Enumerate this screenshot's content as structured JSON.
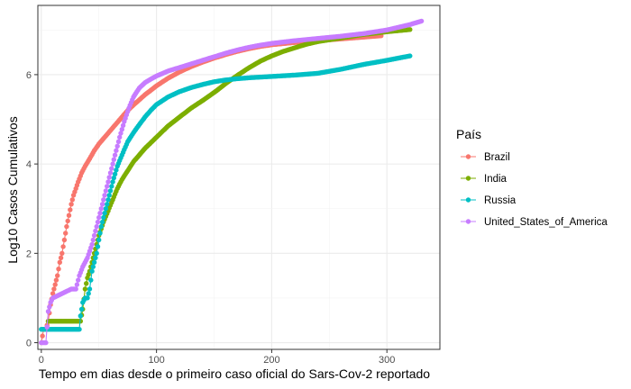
{
  "chart_data": {
    "type": "line",
    "xlabel": "Tempo em dias desde o primeiro caso oficial do Sars-Cov-2 reportado",
    "ylabel": "Log10 Casos Cumulativos",
    "xlim": [
      -3,
      346
    ],
    "ylim": [
      -0.15,
      7.55
    ],
    "x_ticks": [
      0,
      100,
      200,
      300
    ],
    "y_ticks": [
      0,
      2,
      4,
      6
    ],
    "grid": true,
    "legend": {
      "title": "País",
      "position": "right"
    },
    "series": [
      {
        "name": "Brazil",
        "color": "#F8766D",
        "points": [
          [
            0,
            0
          ],
          [
            2,
            0.3
          ],
          [
            4,
            0.3
          ],
          [
            6,
            0.48
          ],
          [
            8,
            0.85
          ],
          [
            10,
            1.1
          ],
          [
            12,
            1.3
          ],
          [
            14,
            1.5
          ],
          [
            16,
            1.8
          ],
          [
            18,
            2.0
          ],
          [
            20,
            2.3
          ],
          [
            22,
            2.6
          ],
          [
            24,
            2.85
          ],
          [
            26,
            3.1
          ],
          [
            28,
            3.3
          ],
          [
            30,
            3.45
          ],
          [
            32,
            3.6
          ],
          [
            35,
            3.8
          ],
          [
            38,
            3.95
          ],
          [
            42,
            4.12
          ],
          [
            46,
            4.3
          ],
          [
            50,
            4.45
          ],
          [
            55,
            4.6
          ],
          [
            60,
            4.75
          ],
          [
            65,
            4.9
          ],
          [
            70,
            5.05
          ],
          [
            75,
            5.2
          ],
          [
            80,
            5.32
          ],
          [
            90,
            5.55
          ],
          [
            100,
            5.75
          ],
          [
            110,
            5.92
          ],
          [
            120,
            6.06
          ],
          [
            130,
            6.18
          ],
          [
            140,
            6.28
          ],
          [
            150,
            6.37
          ],
          [
            160,
            6.45
          ],
          [
            170,
            6.52
          ],
          [
            180,
            6.58
          ],
          [
            190,
            6.63
          ],
          [
            200,
            6.67
          ],
          [
            220,
            6.72
          ],
          [
            240,
            6.76
          ],
          [
            260,
            6.8
          ],
          [
            280,
            6.84
          ],
          [
            295,
            6.87
          ]
        ]
      },
      {
        "name": "India",
        "color": "#7CAE00",
        "points": [
          [
            6,
            0.48
          ],
          [
            10,
            0.48
          ],
          [
            14,
            0.48
          ],
          [
            18,
            0.48
          ],
          [
            22,
            0.48
          ],
          [
            26,
            0.48
          ],
          [
            30,
            0.48
          ],
          [
            34,
            0.48
          ],
          [
            36,
            0.75
          ],
          [
            38,
            1.2
          ],
          [
            40,
            1.45
          ],
          [
            42,
            1.6
          ],
          [
            44,
            1.8
          ],
          [
            46,
            2.0
          ],
          [
            48,
            2.2
          ],
          [
            50,
            2.4
          ],
          [
            54,
            2.7
          ],
          [
            58,
            2.95
          ],
          [
            62,
            3.2
          ],
          [
            66,
            3.45
          ],
          [
            70,
            3.65
          ],
          [
            75,
            3.85
          ],
          [
            80,
            4.05
          ],
          [
            85,
            4.2
          ],
          [
            90,
            4.35
          ],
          [
            100,
            4.6
          ],
          [
            110,
            4.85
          ],
          [
            120,
            5.05
          ],
          [
            130,
            5.25
          ],
          [
            140,
            5.42
          ],
          [
            150,
            5.6
          ],
          [
            160,
            5.8
          ],
          [
            170,
            5.98
          ],
          [
            180,
            6.15
          ],
          [
            190,
            6.3
          ],
          [
            200,
            6.42
          ],
          [
            210,
            6.52
          ],
          [
            220,
            6.6
          ],
          [
            230,
            6.68
          ],
          [
            240,
            6.74
          ],
          [
            260,
            6.82
          ],
          [
            280,
            6.9
          ],
          [
            300,
            6.96
          ],
          [
            320,
            7.01
          ]
        ]
      },
      {
        "name": "Russia",
        "color": "#00BFC4",
        "points": [
          [
            0,
            0.3
          ],
          [
            5,
            0.3
          ],
          [
            10,
            0.3
          ],
          [
            15,
            0.3
          ],
          [
            20,
            0.3
          ],
          [
            25,
            0.3
          ],
          [
            30,
            0.3
          ],
          [
            33,
            0.3
          ],
          [
            34,
            0.6
          ],
          [
            36,
            0.9
          ],
          [
            38,
            1.0
          ],
          [
            40,
            1.0
          ],
          [
            42,
            1.2
          ],
          [
            44,
            1.6
          ],
          [
            46,
            1.8
          ],
          [
            48,
            2.0
          ],
          [
            50,
            2.3
          ],
          [
            52,
            2.6
          ],
          [
            55,
            2.9
          ],
          [
            58,
            3.2
          ],
          [
            62,
            3.6
          ],
          [
            66,
            3.95
          ],
          [
            70,
            4.2
          ],
          [
            75,
            4.5
          ],
          [
            80,
            4.7
          ],
          [
            85,
            4.88
          ],
          [
            90,
            5.05
          ],
          [
            95,
            5.2
          ],
          [
            100,
            5.33
          ],
          [
            110,
            5.5
          ],
          [
            120,
            5.62
          ],
          [
            130,
            5.71
          ],
          [
            140,
            5.78
          ],
          [
            150,
            5.84
          ],
          [
            160,
            5.88
          ],
          [
            170,
            5.91
          ],
          [
            180,
            5.93
          ],
          [
            200,
            5.96
          ],
          [
            220,
            5.99
          ],
          [
            240,
            6.03
          ],
          [
            260,
            6.12
          ],
          [
            280,
            6.23
          ],
          [
            300,
            6.32
          ],
          [
            320,
            6.42
          ]
        ]
      },
      {
        "name": "United_States_of_America",
        "color": "#C77CFF",
        "points": [
          [
            0,
            0
          ],
          [
            2,
            0
          ],
          [
            4,
            0
          ],
          [
            6,
            0.7
          ],
          [
            8,
            0.9
          ],
          [
            10,
            1.0
          ],
          [
            14,
            1.05
          ],
          [
            18,
            1.1
          ],
          [
            22,
            1.15
          ],
          [
            26,
            1.2
          ],
          [
            30,
            1.2
          ],
          [
            33,
            1.5
          ],
          [
            36,
            1.7
          ],
          [
            40,
            1.9
          ],
          [
            44,
            2.2
          ],
          [
            48,
            2.6
          ],
          [
            52,
            3.0
          ],
          [
            56,
            3.4
          ],
          [
            60,
            3.8
          ],
          [
            64,
            4.2
          ],
          [
            68,
            4.6
          ],
          [
            72,
            4.95
          ],
          [
            76,
            5.25
          ],
          [
            80,
            5.5
          ],
          [
            85,
            5.7
          ],
          [
            90,
            5.82
          ],
          [
            95,
            5.9
          ],
          [
            100,
            5.97
          ],
          [
            110,
            6.08
          ],
          [
            120,
            6.16
          ],
          [
            130,
            6.24
          ],
          [
            140,
            6.32
          ],
          [
            150,
            6.4
          ],
          [
            160,
            6.48
          ],
          [
            170,
            6.55
          ],
          [
            180,
            6.61
          ],
          [
            190,
            6.66
          ],
          [
            200,
            6.7
          ],
          [
            220,
            6.76
          ],
          [
            240,
            6.81
          ],
          [
            260,
            6.86
          ],
          [
            280,
            6.92
          ],
          [
            300,
            7.0
          ],
          [
            320,
            7.12
          ],
          [
            330,
            7.2
          ]
        ]
      }
    ]
  }
}
